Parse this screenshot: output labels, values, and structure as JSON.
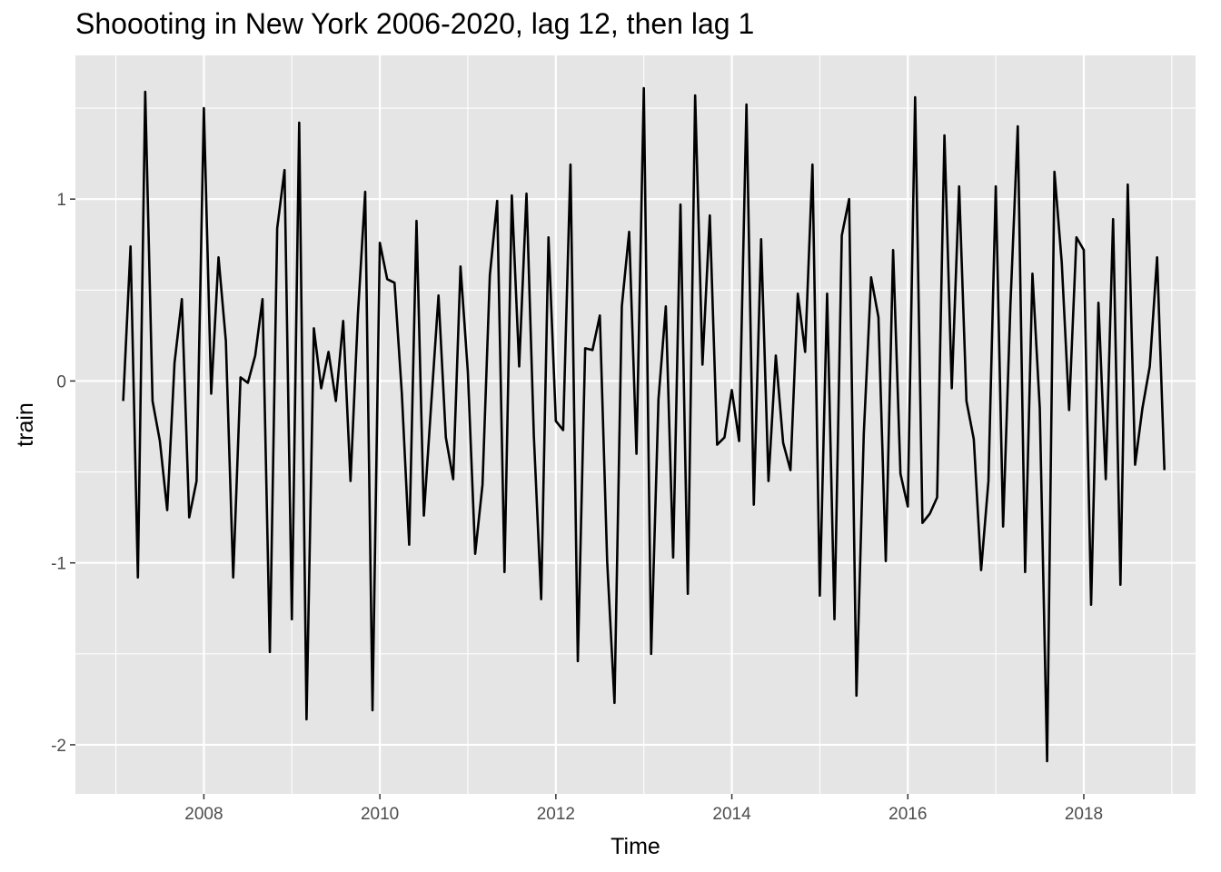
{
  "chart_data": {
    "type": "line",
    "title": "Shoooting in New York 2006-2020, lag 12, then lag 1",
    "xlabel": "Time",
    "ylabel": "train",
    "xlim": [
      2006.54,
      2019.27
    ],
    "ylim": [
      -2.27,
      1.79
    ],
    "x_start": 2007.0833,
    "x_step": 0.08333,
    "x_ticks": [
      2008,
      2010,
      2012,
      2014,
      2016,
      2018
    ],
    "x_tick_labels": [
      "2008",
      "2010",
      "2012",
      "2014",
      "2016",
      "2018"
    ],
    "y_ticks": [
      -2,
      -1,
      0,
      1
    ],
    "y_tick_labels": [
      "-2",
      "-1",
      "0",
      "1"
    ],
    "grid": true,
    "legend": "none",
    "line_color": "#000000",
    "panel_color": "#e5e5e5",
    "series": [
      {
        "values": [
          -0.11,
          0.74,
          -1.08,
          1.59,
          -0.11,
          -0.33,
          -0.71,
          0.1,
          0.45,
          -0.75,
          -0.55,
          1.5,
          -0.07,
          0.68,
          0.22,
          -1.08,
          0.02,
          -0.01,
          0.14,
          0.45,
          -1.49,
          0.84,
          1.16,
          -1.31,
          1.42,
          -1.86,
          0.29,
          -0.04,
          0.16,
          -0.11,
          0.33,
          -0.55,
          0.36,
          1.04,
          -1.81,
          0.76,
          0.56,
          0.54,
          -0.07,
          -0.9,
          0.88,
          -0.74,
          -0.13,
          0.47,
          -0.31,
          -0.54,
          0.63,
          0.05,
          -0.95,
          -0.57,
          0.58,
          0.99,
          -1.05,
          1.02,
          0.08,
          1.03,
          -0.3,
          -1.2,
          0.79,
          -0.22,
          -0.27,
          1.19,
          -1.54,
          0.18,
          0.17,
          0.36,
          -0.99,
          -1.77,
          0.41,
          0.82,
          -0.4,
          1.61,
          -1.5,
          -0.1,
          0.41,
          -0.97,
          0.97,
          -1.17,
          1.57,
          0.09,
          0.91,
          -0.35,
          -0.31,
          -0.05,
          -0.33,
          1.52,
          -0.68,
          0.78,
          -0.55,
          0.14,
          -0.34,
          -0.49,
          0.48,
          0.16,
          1.19,
          -1.18,
          0.48,
          -1.31,
          0.8,
          1.0,
          -1.73,
          -0.29,
          0.57,
          0.35,
          -0.99,
          0.72,
          -0.51,
          -0.69,
          1.56,
          -0.78,
          -0.73,
          -0.64,
          1.35,
          -0.04,
          1.07,
          -0.11,
          -0.32,
          -1.04,
          -0.55,
          1.07,
          -0.8,
          0.42,
          1.4,
          -1.05,
          0.59,
          -0.15,
          -2.09,
          1.15,
          0.65,
          -0.16,
          0.79,
          0.72,
          -1.23,
          0.43,
          -0.54,
          0.89,
          -1.12,
          1.08,
          -0.46,
          -0.15,
          0.08,
          0.68,
          -0.49
        ]
      }
    ]
  }
}
